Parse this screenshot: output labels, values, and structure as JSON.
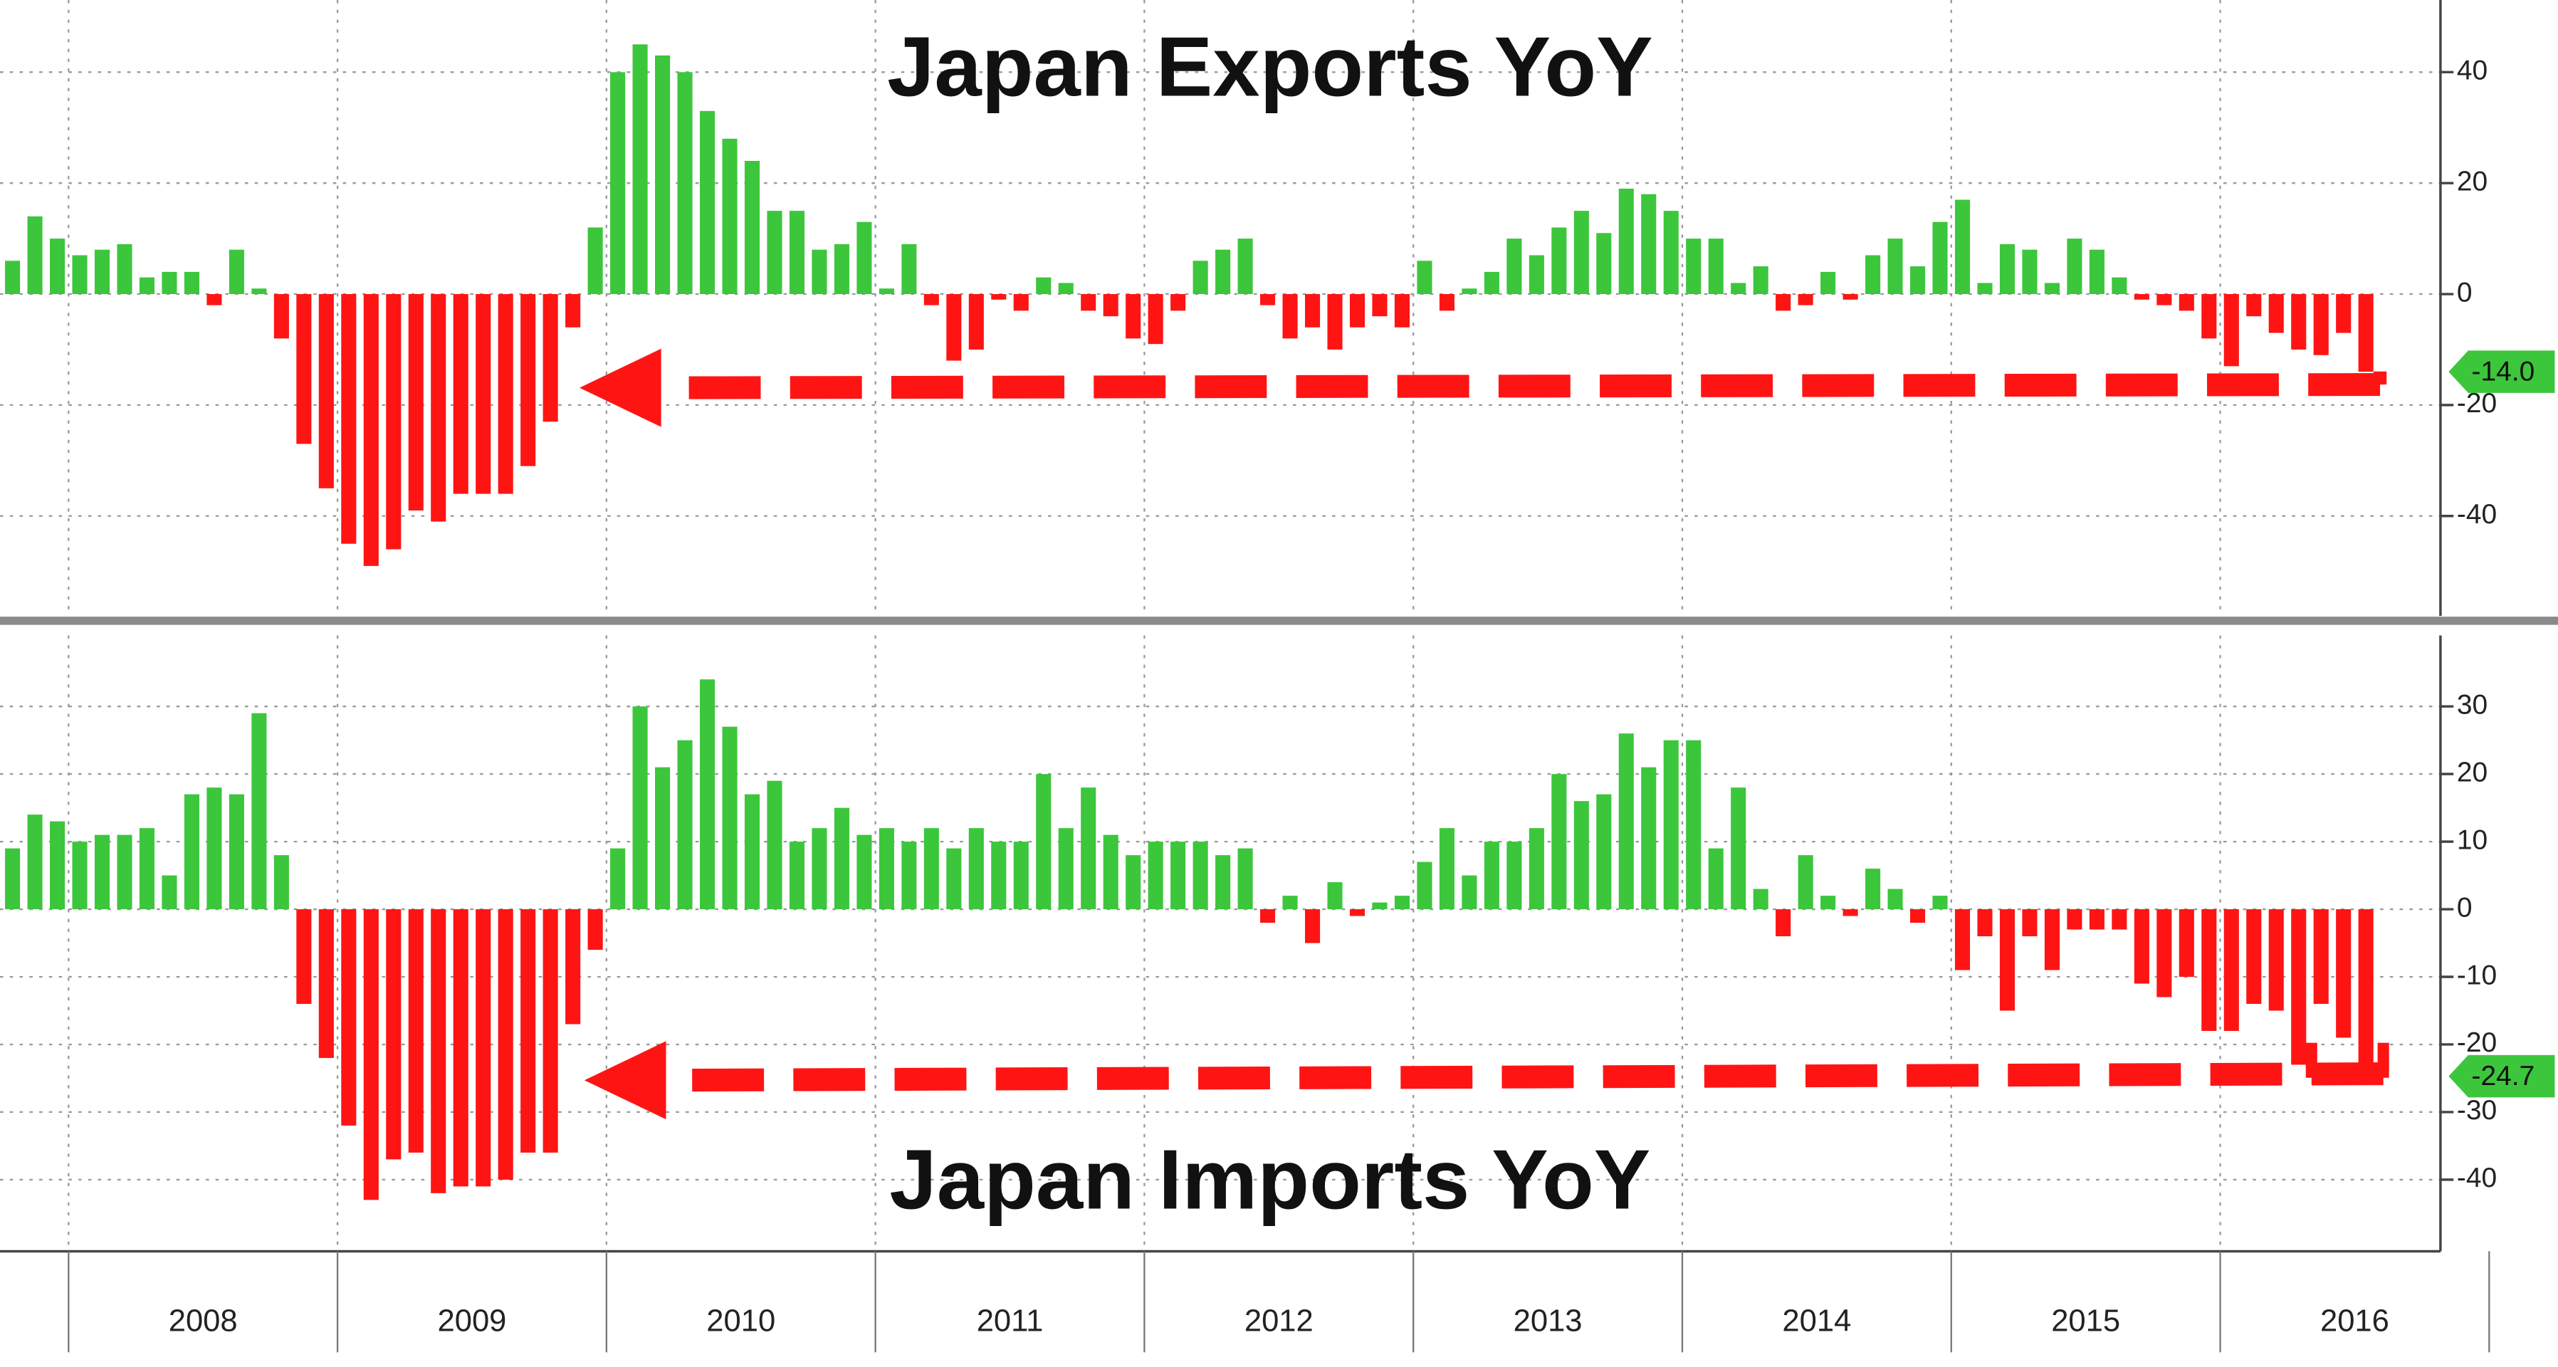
{
  "chart_data": [
    {
      "type": "bar",
      "title": "Japan Exports YoY",
      "values": [
        6,
        14,
        10,
        7,
        8,
        9,
        3,
        4,
        4,
        -2,
        8,
        1,
        -8,
        -27,
        -35,
        -45,
        -49,
        -46,
        -39,
        -41,
        -36,
        -36,
        -36,
        -31,
        -23,
        -6,
        12,
        40,
        45,
        43,
        40,
        33,
        28,
        24,
        15,
        15,
        8,
        9,
        13,
        1,
        9,
        -2,
        -12,
        -10,
        -1,
        -3,
        3,
        2,
        -3,
        -4,
        -8,
        -9,
        -3,
        6,
        8,
        10,
        -2,
        -8,
        -6,
        -10,
        -6,
        -4,
        -6,
        6,
        -3,
        1,
        4,
        10,
        7,
        12,
        15,
        11,
        19,
        18,
        15,
        10,
        10,
        2,
        5,
        -3,
        -2,
        4,
        -1,
        7,
        10,
        5,
        13,
        17,
        2,
        9,
        8,
        2,
        10,
        8,
        3,
        -1,
        -2,
        -3,
        -8,
        -13,
        -4,
        -7,
        -10,
        -11,
        -7,
        -14.0
      ],
      "value_labels": [
        null,
        null,
        null,
        null,
        null,
        null,
        null,
        null,
        null,
        null,
        null,
        null,
        null,
        null,
        null,
        null,
        null,
        null,
        null,
        null,
        null,
        null,
        null,
        null,
        null,
        null,
        null,
        null,
        null,
        null,
        null,
        null,
        null,
        null,
        null,
        null,
        null,
        null,
        null,
        null,
        null,
        null,
        null,
        null,
        null,
        null,
        null,
        null,
        null,
        null,
        null,
        null,
        null,
        null,
        null,
        null,
        null,
        null,
        null,
        null,
        null,
        null,
        null,
        null,
        null,
        null,
        null,
        null,
        null,
        null,
        null,
        null,
        null,
        null,
        null,
        null,
        null,
        null,
        null,
        null,
        null,
        null,
        null,
        null,
        null,
        null,
        null,
        null,
        null,
        null,
        null,
        null,
        null,
        null,
        null,
        null,
        null,
        null,
        null,
        null,
        null,
        null,
        null,
        null,
        null,
        "-14.0"
      ],
      "ylim": [
        -58,
        53
      ],
      "yticks": [
        -40,
        -20,
        0,
        20,
        40
      ],
      "grid": true,
      "colors": {
        "positive": "#3cc63c",
        "negative": "#ff1414"
      }
    },
    {
      "type": "bar",
      "title": "Japan Imports YoY",
      "values": [
        9,
        14,
        13,
        10,
        11,
        11,
        12,
        5,
        17,
        18,
        17,
        29,
        8,
        -14,
        -22,
        -32,
        -43,
        -37,
        -36,
        -42,
        -41,
        -41,
        -40,
        -36,
        -36,
        -17,
        -6,
        9,
        30,
        21,
        25,
        34,
        27,
        17,
        19,
        10,
        12,
        15,
        11,
        12,
        10,
        12,
        9,
        12,
        10,
        10,
        20,
        12,
        18,
        11,
        8,
        10,
        10,
        10,
        8,
        9,
        -2,
        2,
        -5,
        4,
        -1,
        1,
        2,
        7,
        12,
        5,
        10,
        10,
        12,
        20,
        16,
        17,
        26,
        21,
        25,
        25,
        9,
        18,
        3,
        -4,
        8,
        2,
        -1,
        6,
        3,
        -2,
        2,
        -9,
        -4,
        -15,
        -4,
        -9,
        -3,
        -3,
        -3,
        -11,
        -13,
        -10,
        -18,
        -18,
        -14,
        -15,
        -23,
        -14,
        -19,
        -24.7
      ],
      "value_labels": [
        null,
        null,
        null,
        null,
        null,
        null,
        null,
        null,
        null,
        null,
        null,
        null,
        null,
        null,
        null,
        null,
        null,
        null,
        null,
        null,
        null,
        null,
        null,
        null,
        null,
        null,
        null,
        null,
        null,
        null,
        null,
        null,
        null,
        null,
        null,
        null,
        null,
        null,
        null,
        null,
        null,
        null,
        null,
        null,
        null,
        null,
        null,
        null,
        null,
        null,
        null,
        null,
        null,
        null,
        null,
        null,
        null,
        null,
        null,
        null,
        null,
        null,
        null,
        null,
        null,
        null,
        null,
        null,
        null,
        null,
        null,
        null,
        null,
        null,
        null,
        null,
        null,
        null,
        null,
        null,
        null,
        null,
        null,
        null,
        null,
        null,
        null,
        null,
        null,
        null,
        null,
        null,
        null,
        null,
        null,
        null,
        null,
        null,
        null,
        null,
        null,
        null,
        null,
        null,
        null,
        "-24.7"
      ],
      "ylim": [
        -50.6,
        40.5
      ],
      "yticks": [
        -40,
        -30,
        -20,
        -10,
        0,
        10,
        20,
        30
      ],
      "grid": true,
      "colors": {
        "positive": "#3cc63c",
        "negative": "#ff1414"
      }
    }
  ],
  "x_axis": {
    "labels": [
      "2008",
      "2009",
      "2010",
      "2011",
      "2012",
      "2013",
      "2014",
      "2015",
      "2016"
    ]
  }
}
